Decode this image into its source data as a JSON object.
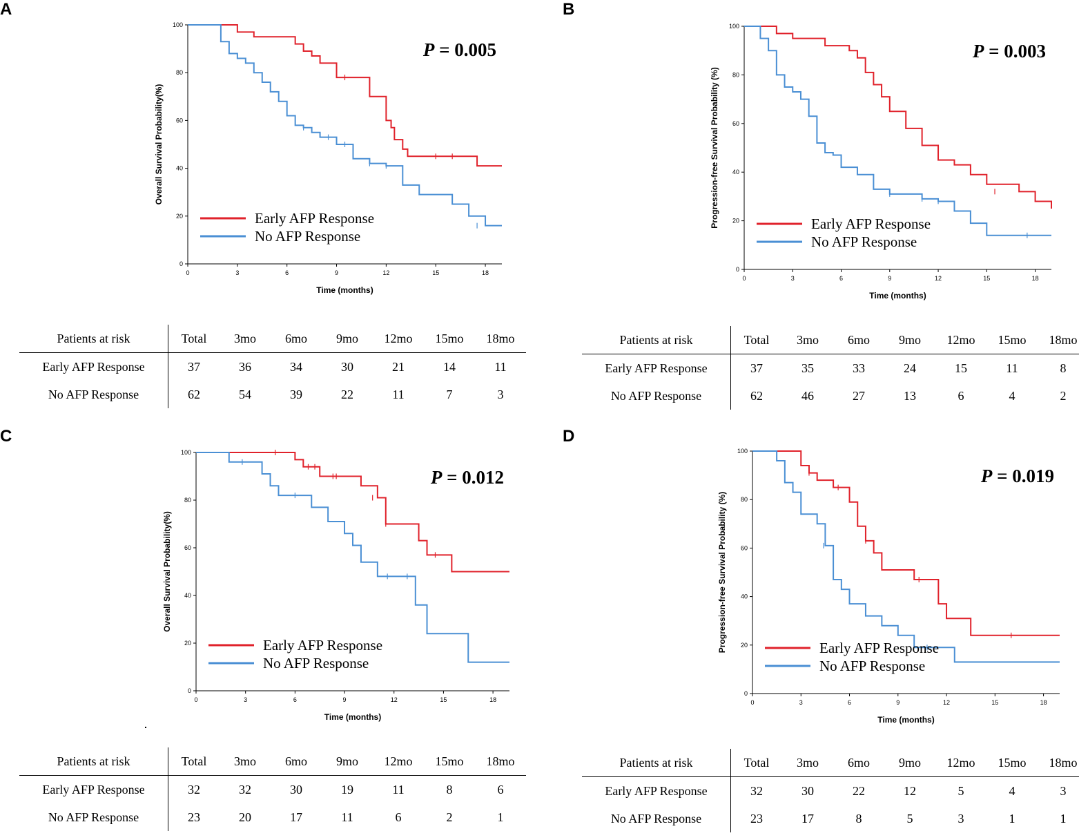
{
  "panels": [
    {
      "letter": "A",
      "p_label": "P",
      "p_value": "= 0.005"
    },
    {
      "letter": "B",
      "p_label": "P",
      "p_value": "= 0.003"
    },
    {
      "letter": "C",
      "p_label": "P",
      "p_value": "= 0.012"
    },
    {
      "letter": "D",
      "p_label": "P",
      "p_value": "= 0.019"
    }
  ],
  "colors": {
    "early": "#e0222b",
    "none": "#4a8fd4"
  },
  "risk_header": [
    "Patients at risk",
    "Total",
    "3mo",
    "6mo",
    "9mo",
    "12mo",
    "15mo",
    "18mo"
  ],
  "chart_data": [
    {
      "type": "line",
      "title": "",
      "xlabel": "Time (months)",
      "ylabel": "Overall Survival Probability(%)",
      "xlim": [
        0,
        19
      ],
      "ylim": [
        0,
        100
      ],
      "xticks": [
        0,
        3,
        6,
        9,
        12,
        15,
        18
      ],
      "yticks": [
        0,
        20,
        40,
        60,
        80,
        100
      ],
      "legend": [
        "Early AFP Response",
        "No AFP Response"
      ],
      "series": [
        {
          "name": "Early AFP Response",
          "x": [
            0,
            2.5,
            3,
            4,
            6,
            6.5,
            7,
            7.5,
            8,
            9,
            10,
            11,
            12,
            12.3,
            12.5,
            13,
            13.3,
            14,
            16,
            17.5,
            19
          ],
          "y": [
            100,
            100,
            97,
            95,
            95,
            92,
            89,
            87,
            84,
            78,
            78,
            70,
            60,
            57,
            52,
            48,
            45,
            45,
            45,
            41,
            41
          ],
          "censor_x": [
            9.5,
            15,
            16
          ],
          "censor_y": [
            78,
            45,
            45
          ]
        },
        {
          "name": "No AFP Response",
          "x": [
            0,
            2,
            2.5,
            3,
            3.5,
            4,
            4.5,
            5,
            5.5,
            6,
            6.5,
            7,
            7.5,
            8,
            9,
            10,
            11,
            12,
            13,
            14,
            15,
            16,
            17,
            18,
            19
          ],
          "y": [
            100,
            93,
            88,
            86,
            84,
            80,
            76,
            72,
            68,
            62,
            58,
            57,
            55,
            53,
            50,
            44,
            42,
            41,
            33,
            29,
            29,
            25,
            20,
            16,
            16
          ],
          "censor_x": [
            7,
            8.5,
            9.5,
            11,
            12,
            17.5
          ],
          "censor_y": [
            57,
            53,
            50,
            42,
            41,
            16
          ]
        }
      ],
      "risk": [
        [
          "Early AFP Response",
          37,
          36,
          34,
          30,
          21,
          14,
          11
        ],
        [
          "No AFP Response",
          62,
          54,
          39,
          22,
          11,
          7,
          3
        ]
      ]
    },
    {
      "type": "line",
      "title": "",
      "xlabel": "Time (months)",
      "ylabel": "Progression-free Survival Probability (%)",
      "xlim": [
        0,
        19
      ],
      "ylim": [
        0,
        100
      ],
      "xticks": [
        0,
        3,
        6,
        9,
        12,
        15,
        18
      ],
      "yticks": [
        0,
        20,
        40,
        60,
        80,
        100
      ],
      "legend": [
        "Early AFP Response",
        "No AFP Response"
      ],
      "series": [
        {
          "name": "Early AFP Response",
          "x": [
            0,
            1.5,
            2,
            3,
            4,
            5,
            5.5,
            6,
            6.5,
            7,
            7.5,
            8,
            8.5,
            9,
            10,
            11,
            12,
            13,
            14,
            15,
            16,
            17,
            18,
            18.5,
            19
          ],
          "y": [
            100,
            100,
            97,
            95,
            95,
            92,
            92,
            92,
            90,
            87,
            81,
            76,
            71,
            65,
            58,
            51,
            45,
            43,
            39,
            35,
            35,
            32,
            28,
            28,
            25
          ],
          "censor_x": [
            15.5
          ],
          "censor_y": [
            32
          ]
        },
        {
          "name": "No AFP Response",
          "x": [
            0,
            1,
            1.5,
            2,
            2.5,
            3,
            3.5,
            4,
            4.5,
            5,
            5.5,
            6,
            7,
            8,
            9,
            10,
            11,
            12,
            13,
            14,
            15,
            16,
            17,
            18,
            19
          ],
          "y": [
            100,
            95,
            90,
            80,
            75,
            73,
            70,
            63,
            52,
            48,
            47,
            42,
            39,
            33,
            31,
            31,
            29,
            28,
            24,
            19,
            14,
            14,
            14,
            14,
            14
          ],
          "censor_x": [
            9,
            11,
            12,
            17.5
          ],
          "censor_y": [
            31,
            29,
            28,
            14
          ]
        }
      ],
      "risk": [
        [
          "Early AFP Response",
          37,
          35,
          33,
          24,
          15,
          11,
          8
        ],
        [
          "No AFP Response",
          62,
          46,
          27,
          13,
          6,
          4,
          2
        ]
      ]
    },
    {
      "type": "line",
      "title": "",
      "xlabel": "Time (months)",
      "ylabel": "Overall Survival Probability(%)",
      "xlim": [
        0,
        19
      ],
      "ylim": [
        0,
        100
      ],
      "xticks": [
        0,
        3,
        6,
        9,
        12,
        15,
        18
      ],
      "yticks": [
        0,
        20,
        40,
        60,
        80,
        100
      ],
      "legend": [
        "Early AFP Response",
        "No AFP Response"
      ],
      "series": [
        {
          "name": "Early AFP Response",
          "x": [
            0,
            5,
            6,
            6.5,
            7.5,
            9,
            10,
            11,
            11.5,
            12,
            13.5,
            14,
            15,
            15.5,
            16,
            19
          ],
          "y": [
            100,
            100,
            97,
            94,
            90,
            90,
            86,
            81,
            70,
            70,
            63,
            57,
            57,
            50,
            50,
            50
          ],
          "censor_x": [
            4.8,
            6.8,
            7.2,
            8.3,
            8.5,
            10.7,
            11.5,
            14.5
          ],
          "censor_y": [
            100,
            94,
            94,
            90,
            90,
            81,
            70,
            57
          ]
        },
        {
          "name": "No AFP Response",
          "x": [
            0,
            2,
            4,
            4.5,
            5,
            6.5,
            7,
            8,
            9,
            9.5,
            10,
            11,
            12,
            13,
            13.3,
            14,
            16,
            16.5,
            19
          ],
          "y": [
            100,
            96,
            91,
            86,
            82,
            82,
            77,
            71,
            66,
            61,
            54,
            48,
            48,
            48,
            36,
            24,
            24,
            12,
            12
          ],
          "censor_x": [
            2.8,
            6,
            11.6,
            12.8
          ],
          "censor_y": [
            96,
            82,
            48,
            48
          ]
        }
      ],
      "risk": [
        [
          "Early AFP Response",
          32,
          32,
          30,
          19,
          11,
          8,
          6
        ],
        [
          "No AFP Response",
          23,
          20,
          17,
          11,
          6,
          2,
          1
        ]
      ]
    },
    {
      "type": "line",
      "title": "",
      "xlabel": "Time (months)",
      "ylabel": "Progression-free Survival Probability (%)",
      "xlim": [
        0,
        19
      ],
      "ylim": [
        0,
        100
      ],
      "xticks": [
        0,
        3,
        6,
        9,
        12,
        15,
        18
      ],
      "yticks": [
        0,
        20,
        40,
        60,
        80,
        100
      ],
      "legend": [
        "Early AFP Response",
        "No AFP Response"
      ],
      "series": [
        {
          "name": "Early AFP Response",
          "x": [
            0,
            2.5,
            3,
            3.5,
            4,
            5,
            5.5,
            6,
            6.5,
            7,
            7.5,
            8,
            9,
            10,
            11,
            11.5,
            12,
            13,
            13.5,
            19
          ],
          "y": [
            100,
            100,
            94,
            91,
            88,
            85,
            85,
            79,
            69,
            63,
            58,
            51,
            51,
            47,
            47,
            37,
            31,
            31,
            24,
            24
          ],
          "censor_x": [
            3.5,
            5.3,
            7,
            10.3,
            16
          ],
          "censor_y": [
            91,
            85,
            63,
            47,
            24
          ]
        },
        {
          "name": "No AFP Response",
          "x": [
            0,
            1.5,
            2,
            2.5,
            3,
            4,
            4.5,
            5,
            5.5,
            6,
            6.5,
            7,
            8,
            9,
            10,
            11,
            12,
            12.5,
            19
          ],
          "y": [
            100,
            96,
            87,
            83,
            74,
            70,
            61,
            47,
            43,
            37,
            37,
            32,
            28,
            24,
            19,
            19,
            19,
            13,
            13
          ],
          "censor_x": [
            4.4,
            10.8
          ],
          "censor_y": [
            61,
            19
          ]
        }
      ],
      "risk": [
        [
          "Early AFP Response",
          32,
          30,
          22,
          12,
          5,
          4,
          3
        ],
        [
          "No AFP Response",
          23,
          17,
          8,
          5,
          3,
          1,
          1
        ]
      ]
    }
  ]
}
